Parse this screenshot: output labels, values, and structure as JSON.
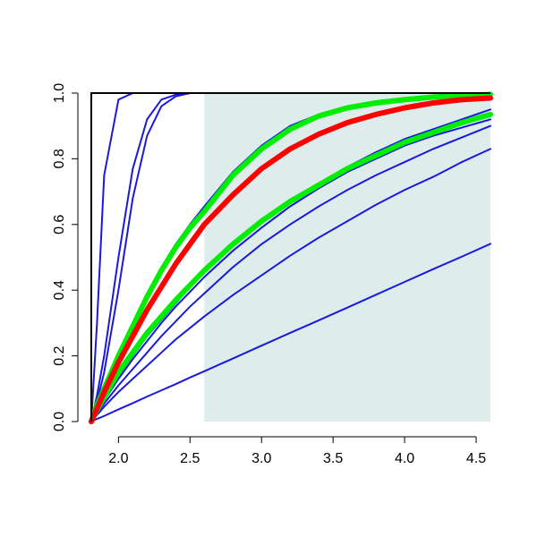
{
  "chart_data": {
    "type": "line",
    "x": [
      1.81,
      1.85,
      1.9,
      2.0,
      2.1,
      2.2,
      2.3,
      2.4,
      2.5,
      2.6,
      2.8,
      3.0,
      3.2,
      3.4,
      3.6,
      3.8,
      4.0,
      4.2,
      4.4,
      4.6
    ],
    "xlim": [
      1.81,
      4.6
    ],
    "ylim": [
      0,
      1
    ],
    "xticks": [
      {
        "value": 2,
        "label": "2.0"
      },
      2.5,
      {
        "value": 3,
        "label": "3.0"
      },
      3.5,
      {
        "value": 4,
        "label": "4.0"
      },
      4.5
    ],
    "yticks": [
      {
        "value": 0,
        "label": "0.0"
      },
      0.2,
      0.4,
      0.6,
      0.8,
      {
        "value": 1,
        "label": "1.0"
      }
    ],
    "shaded_region": {
      "x": [
        2.6,
        4.6
      ],
      "color": "#dfecec"
    },
    "series": [
      {
        "color": "#1a1adb",
        "width": 2,
        "values": [
          0,
          0.008,
          0.017,
          0.037,
          0.056,
          0.076,
          0.095,
          0.114,
          0.134,
          0.153,
          0.192,
          0.231,
          0.27,
          0.308,
          0.347,
          0.386,
          0.425,
          0.464,
          0.502,
          0.541
        ]
      },
      {
        "color": "#1a1adb",
        "width": 2,
        "values": [
          0,
          0.02,
          0.045,
          0.09,
          0.13,
          0.17,
          0.21,
          0.25,
          0.285,
          0.32,
          0.385,
          0.445,
          0.505,
          0.56,
          0.61,
          0.66,
          0.705,
          0.745,
          0.79,
          0.83
        ]
      },
      {
        "color": "#1a1adb",
        "width": 2,
        "values": [
          0,
          0.025,
          0.055,
          0.11,
          0.16,
          0.21,
          0.26,
          0.305,
          0.35,
          0.39,
          0.47,
          0.54,
          0.6,
          0.655,
          0.705,
          0.75,
          0.79,
          0.83,
          0.865,
          0.9
        ]
      },
      {
        "color": "#1a1adb",
        "width": 2,
        "values": [
          0,
          0.03,
          0.065,
          0.13,
          0.19,
          0.245,
          0.3,
          0.35,
          0.395,
          0.44,
          0.52,
          0.59,
          0.655,
          0.71,
          0.76,
          0.8,
          0.84,
          0.87,
          0.895,
          0.92
        ]
      },
      {
        "color": "#1a1adb",
        "width": 2,
        "values": [
          0,
          0.035,
          0.075,
          0.14,
          0.2,
          0.26,
          0.31,
          0.36,
          0.41,
          0.455,
          0.535,
          0.605,
          0.67,
          0.725,
          0.775,
          0.82,
          0.86,
          0.89,
          0.92,
          0.95
        ]
      },
      {
        "color": "#1a1adb",
        "width": 2,
        "values": [
          0,
          0.05,
          0.11,
          0.21,
          0.3,
          0.39,
          0.47,
          0.54,
          0.6,
          0.655,
          0.76,
          0.84,
          0.9,
          0.935,
          0.96,
          0.975,
          0.985,
          0.99,
          0.994,
          0.997
        ]
      },
      {
        "color": "#1a1adb",
        "width": 2,
        "values": [
          0,
          0.3,
          0.75,
          0.98,
          1,
          1,
          1,
          1,
          1,
          1,
          1,
          1,
          1,
          1,
          1,
          1,
          1,
          1,
          1,
          1
        ]
      },
      {
        "color": "#1a1adb",
        "width": 2,
        "values": [
          0,
          0.08,
          0.2,
          0.5,
          0.77,
          0.92,
          0.98,
          0.995,
          1,
          1,
          1,
          1,
          1,
          1,
          1,
          1,
          1,
          1,
          1,
          1
        ]
      },
      {
        "color": "#1a1adb",
        "width": 2,
        "values": [
          0,
          0.06,
          0.15,
          0.4,
          0.68,
          0.87,
          0.96,
          0.99,
          1,
          1,
          1,
          1,
          1,
          1,
          1,
          1,
          1,
          1,
          1,
          1
        ]
      },
      {
        "color": "#00ee00",
        "width": 6,
        "values": [
          0,
          0.035,
          0.075,
          0.15,
          0.21,
          0.27,
          0.32,
          0.37,
          0.415,
          0.46,
          0.54,
          0.61,
          0.67,
          0.72,
          0.77,
          0.81,
          0.85,
          0.88,
          0.91,
          0.935
        ]
      },
      {
        "color": "#00ee00",
        "width": 6,
        "values": [
          0,
          0.05,
          0.1,
          0.2,
          0.29,
          0.38,
          0.46,
          0.53,
          0.59,
          0.64,
          0.75,
          0.83,
          0.89,
          0.93,
          0.955,
          0.97,
          0.98,
          0.988,
          0.993,
          0.996
        ]
      },
      {
        "color": "#ff0000",
        "width": 6,
        "values": [
          0,
          0.04,
          0.09,
          0.18,
          0.26,
          0.34,
          0.41,
          0.48,
          0.54,
          0.6,
          0.69,
          0.77,
          0.83,
          0.875,
          0.91,
          0.935,
          0.955,
          0.97,
          0.98,
          0.985
        ]
      }
    ]
  }
}
